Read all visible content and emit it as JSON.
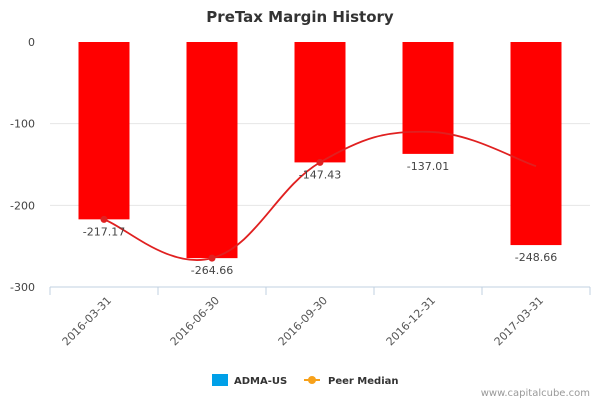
{
  "chart_data": {
    "type": "bar",
    "title": "PreTax Margin History",
    "categories": [
      "2016-03-31",
      "2016-06-30",
      "2016-09-30",
      "2016-12-31",
      "2017-03-31"
    ],
    "series": [
      {
        "name": "ADMA-US",
        "values": [
          -217.17,
          -264.66,
          -147.43,
          -137.01,
          -248.66
        ],
        "color": "#ff0000"
      },
      {
        "name": "Peer Median",
        "values": [
          -217.17,
          -264.66,
          -147.43,
          -110,
          -152
        ],
        "color": "#f7a11a",
        "line_color": "#e02020"
      }
    ],
    "data_labels": [
      "-217.17",
      "-264.66",
      "-147.43",
      "-137.01",
      "-248.66"
    ],
    "yticks": [
      "0",
      "-100",
      "-200",
      "-300"
    ],
    "ylim": [
      -300,
      0
    ],
    "legend": {
      "position": "bottom-center",
      "swatch_color": "#00a0e8",
      "marker_color": "#f7a11a"
    }
  },
  "credit": "www.capitalcube.com"
}
